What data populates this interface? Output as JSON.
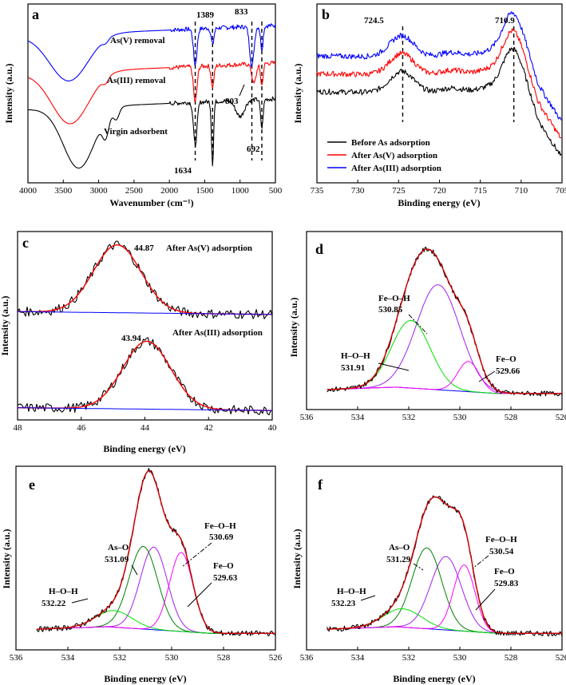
{
  "chart_data": [
    {
      "panel": "a",
      "type": "line",
      "xlabel": "Wavenumber (cm⁻¹)",
      "ylabel": "Intensity (a.u.)",
      "xlim": [
        4000,
        500
      ],
      "ylim": [
        0,
        10
      ],
      "xticks": [
        4000,
        3500,
        3000,
        2500,
        2000,
        1500,
        1000,
        500
      ],
      "series": [
        {
          "name": "As(V) removal",
          "color": "#0000ff",
          "offset": 8.2,
          "peaks": [
            [
              3420,
              2.6,
              270
            ],
            [
              2900,
              0.2,
              40
            ],
            [
              1634,
              2.0,
              25
            ],
            [
              1389,
              0.9,
              20
            ],
            [
              833,
              2.2,
              30
            ],
            [
              692,
              1.3,
              18
            ]
          ]
        },
        {
          "name": "As(III) removal",
          "color": "#ff0000",
          "offset": 6.1,
          "peaks": [
            [
              3400,
              2.9,
              260
            ],
            [
              2900,
              0.3,
              40
            ],
            [
              1634,
              2.0,
              25
            ],
            [
              1389,
              1.2,
              20
            ],
            [
              803,
              1.1,
              30
            ],
            [
              692,
              1.2,
              18
            ]
          ]
        },
        {
          "name": "Virgin adsorbent",
          "color": "#000000",
          "offset": 4.1,
          "peaks": [
            [
              3280,
              3.4,
              220
            ],
            [
              2900,
              1.1,
              45
            ],
            [
              2750,
              0.6,
              40
            ],
            [
              1634,
              2.4,
              25
            ],
            [
              1389,
              3.5,
              15
            ],
            [
              1000,
              0.9,
              60
            ],
            [
              692,
              1.6,
              18
            ]
          ]
        }
      ],
      "annotations": [
        "1389",
        "833",
        "803",
        "692",
        "1634"
      ],
      "dashed_positions": [
        1634,
        1389,
        833,
        692
      ]
    },
    {
      "panel": "b",
      "type": "line",
      "xlabel": "Binding energy (eV)",
      "ylabel": "Intensity (a.u.)",
      "xlim": [
        735,
        705
      ],
      "ylim": [
        0,
        10
      ],
      "xticks": [
        735,
        730,
        725,
        720,
        715,
        710,
        705
      ],
      "annotations": [
        "724.5",
        "710.9"
      ],
      "dashed_positions": [
        724.5,
        710.9
      ],
      "series": [
        {
          "name": "Before As adsorption",
          "color": "#000000",
          "offset": 5.1
        },
        {
          "name": "After As(V) adsorption",
          "color": "#ff0000",
          "offset": 6.1
        },
        {
          "name": "After As(III) adsorption",
          "color": "#0000ff",
          "offset": 7.1
        }
      ]
    },
    {
      "panel": "c",
      "type": "line",
      "xlabel": "Binding energy (eV)",
      "ylabel": "Intensity (a.u.)",
      "xlim": [
        48,
        40
      ],
      "ylim": [
        0,
        10
      ],
      "xticks": [
        48,
        46,
        44,
        42,
        40
      ],
      "series": [
        {
          "name": "After As(V) adsorption",
          "peak_label": "44.87",
          "center": 44.87,
          "offset": 5.5
        },
        {
          "name": "After As(III) adsorption",
          "peak_label": "43.94",
          "center": 43.94,
          "offset": 0.4
        }
      ]
    },
    {
      "panel": "d",
      "type": "line",
      "xlabel": "",
      "ylabel": "Intensity (a.u.)",
      "xlim": [
        536,
        526
      ],
      "ylim": [
        0,
        10
      ],
      "xticks": [
        536,
        534,
        532,
        530,
        528,
        526
      ],
      "components": [
        {
          "name": "Fe–O–H",
          "value": "530.85",
          "center": 530.85,
          "color": "#a020f0"
        },
        {
          "name": "H–O–H",
          "value": "531.91",
          "center": 531.91,
          "color": "#00e000"
        },
        {
          "name": "Fe–O",
          "value": "529.66",
          "center": 529.66,
          "color": "#ff00ff"
        }
      ]
    },
    {
      "panel": "e",
      "type": "line",
      "xlabel": "Binding energy (eV)",
      "ylabel": "Intensity (a.u.)",
      "xlim": [
        536,
        526
      ],
      "ylim": [
        0,
        10
      ],
      "xticks": [
        536,
        534,
        532,
        530,
        528,
        526
      ],
      "components": [
        {
          "name": "Fe–O–H",
          "value": "530.69",
          "center": 530.69,
          "color": "#a020f0"
        },
        {
          "name": "As–O",
          "value": "531.09",
          "center": 531.09,
          "color": "#008000"
        },
        {
          "name": "H–O–H",
          "value": "532.22",
          "center": 532.22,
          "color": "#00e000"
        },
        {
          "name": "Fe–O",
          "value": "529.63",
          "center": 529.63,
          "color": "#ff00ff"
        }
      ]
    },
    {
      "panel": "f",
      "type": "line",
      "xlabel": "Binding energy (eV)",
      "ylabel": "Intensity (a.u.)",
      "xlim": [
        536,
        526
      ],
      "ylim": [
        0,
        10
      ],
      "xticks": [
        536,
        534,
        532,
        530,
        528,
        526
      ],
      "components": [
        {
          "name": "Fe–O–H",
          "value": "530.54",
          "center": 530.54,
          "color": "#a020f0"
        },
        {
          "name": "As–O",
          "value": "531.29",
          "center": 531.29,
          "color": "#008000"
        },
        {
          "name": "H–O–H",
          "value": "532.23",
          "center": 532.23,
          "color": "#00e000"
        },
        {
          "name": "Fe–O",
          "value": "529.83",
          "center": 529.83,
          "color": "#ff00ff"
        }
      ]
    }
  ]
}
